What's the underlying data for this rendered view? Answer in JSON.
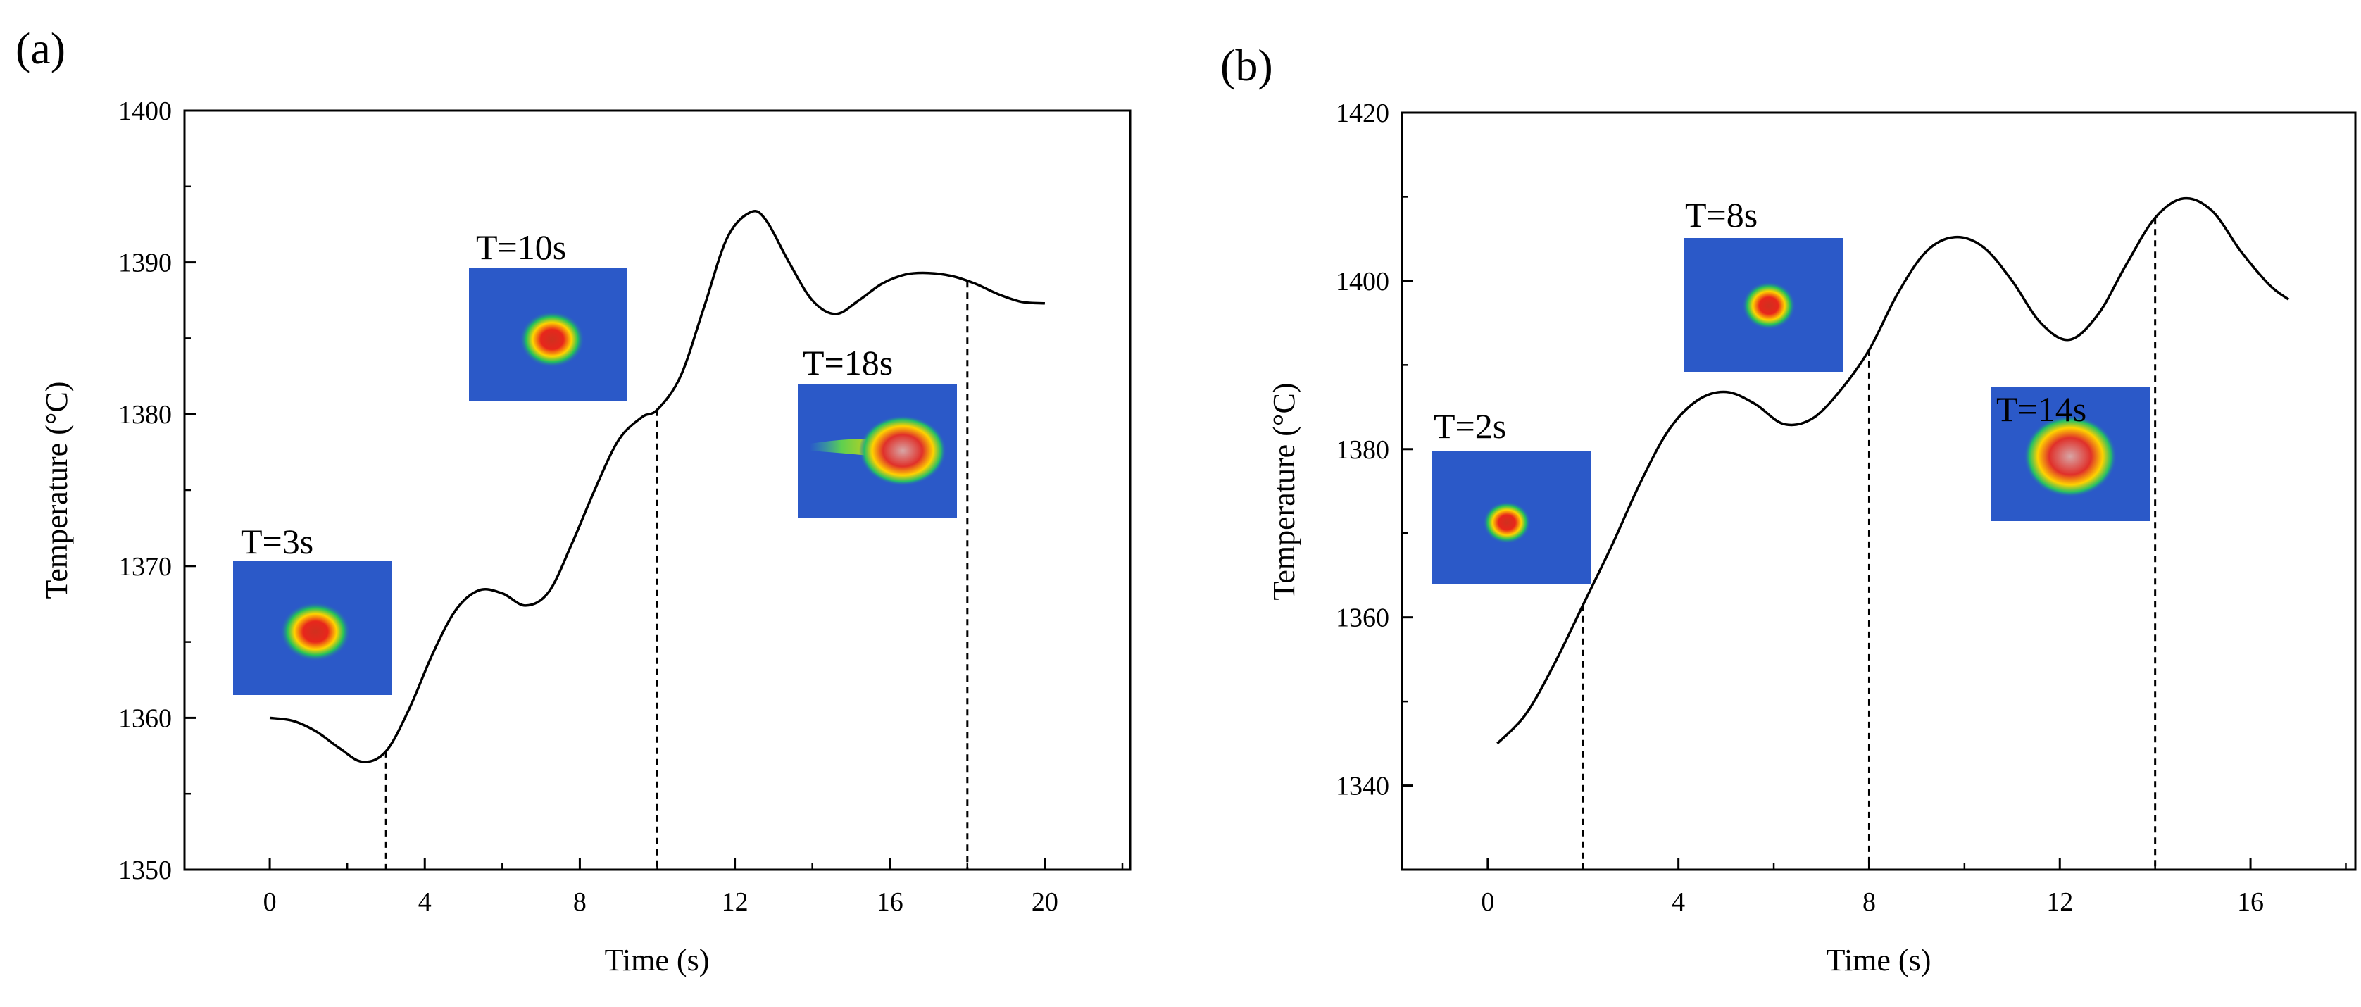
{
  "chart_data": [
    {
      "type": "line",
      "panel_label": "(a)",
      "xlabel": "Time (s)",
      "ylabel": "Temperature (°C)",
      "xlim": [
        -2.2,
        22.2
      ],
      "ylim": [
        1350,
        1400
      ],
      "xticks": [
        0,
        4,
        8,
        12,
        16,
        20
      ],
      "yticks": [
        1350,
        1360,
        1370,
        1380,
        1390,
        1400
      ],
      "grid": false,
      "series": [
        {
          "name": "temperature",
          "x": [
            0,
            0.6,
            1.2,
            1.8,
            2.4,
            3.0,
            3.6,
            4.2,
            4.8,
            5.4,
            6.0,
            6.6,
            7.2,
            7.8,
            8.4,
            9.0,
            9.6,
            10.0,
            10.6,
            11.2,
            11.8,
            12.4,
            12.8,
            13.4,
            14.0,
            14.6,
            15.2,
            15.8,
            16.4,
            17.0,
            17.6,
            18.2,
            18.8,
            19.4,
            20.0
          ],
          "y": [
            1360,
            1359.8,
            1359.1,
            1358.0,
            1357.1,
            1357.8,
            1360.6,
            1364.2,
            1367.1,
            1368.4,
            1368.2,
            1367.4,
            1368.3,
            1371.5,
            1375.1,
            1378.3,
            1379.8,
            1380.3,
            1382.5,
            1387.0,
            1391.6,
            1393.3,
            1392.8,
            1390.0,
            1387.5,
            1386.6,
            1387.5,
            1388.6,
            1389.2,
            1389.3,
            1389.1,
            1388.6,
            1387.9,
            1387.4,
            1387.3
          ]
        }
      ],
      "markers": [
        {
          "t": 3,
          "label": "T=3s"
        },
        {
          "t": 10,
          "label": "T=10s"
        },
        {
          "t": 18,
          "label": "T=18s"
        }
      ]
    },
    {
      "type": "line",
      "panel_label": "(b)",
      "xlabel": "Time (s)",
      "ylabel": "Temperature (°C)",
      "xlim": [
        -1.8,
        18.2
      ],
      "ylim": [
        1330,
        1420
      ],
      "xticks": [
        0,
        4,
        8,
        12,
        16
      ],
      "yticks": [
        1340,
        1360,
        1380,
        1400,
        1420
      ],
      "grid": false,
      "series": [
        {
          "name": "temperature",
          "x": [
            0.2,
            0.8,
            1.4,
            2.0,
            2.6,
            3.2,
            3.8,
            4.4,
            5.0,
            5.6,
            6.2,
            6.8,
            7.4,
            8.0,
            8.6,
            9.2,
            9.8,
            10.4,
            11.0,
            11.6,
            12.2,
            12.8,
            13.4,
            14.0,
            14.6,
            15.2,
            15.8,
            16.4,
            16.8
          ],
          "y": [
            1345,
            1348.5,
            1354.5,
            1361.5,
            1368.5,
            1376.0,
            1382.3,
            1385.8,
            1386.8,
            1385.4,
            1383.0,
            1383.6,
            1387.0,
            1391.8,
            1398.5,
            1403.5,
            1405.2,
            1404.0,
            1400.0,
            1395.0,
            1393.0,
            1396.0,
            1402.0,
            1407.5,
            1409.8,
            1408.3,
            1403.5,
            1399.5,
            1397.8
          ]
        }
      ],
      "markers": [
        {
          "t": 2,
          "label": "T=2s"
        },
        {
          "t": 8,
          "label": "T=8s"
        },
        {
          "t": 14,
          "label": "T=14s"
        }
      ]
    }
  ]
}
